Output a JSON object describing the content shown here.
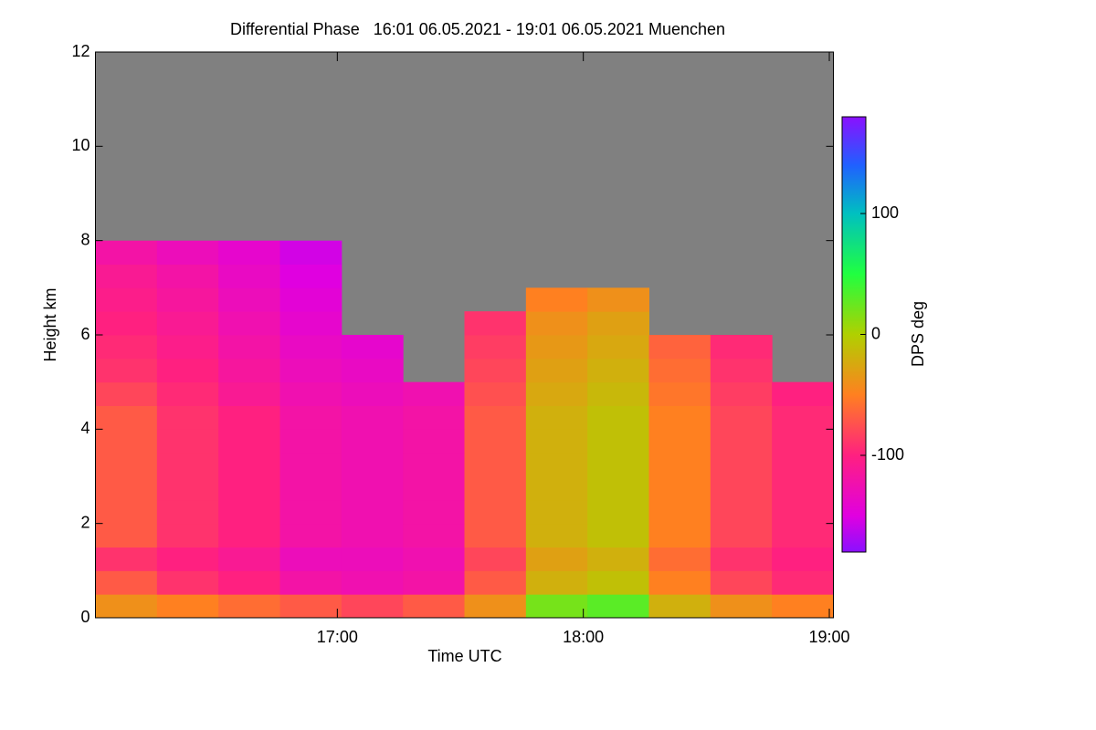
{
  "chart_data": {
    "type": "heatmap",
    "title": "Differential Phase   16:01 06.05.2021 - 19:01 06.05.2021 Muenchen",
    "xlabel": "Time UTC",
    "ylabel": "Height km",
    "colorbar_label": "DPS deg",
    "xlim": [
      16.0167,
      19.0167
    ],
    "ylim": [
      0,
      12
    ],
    "xticks": [
      {
        "value": 17,
        "label": "17:00"
      },
      {
        "value": 18,
        "label": "18:00"
      },
      {
        "value": 19,
        "label": "19:00"
      }
    ],
    "yticks": [
      0,
      2,
      4,
      6,
      8,
      10,
      12
    ],
    "x_bins": [
      16.0167,
      16.2667,
      16.5167,
      16.7667,
      17.0167,
      17.2667,
      17.5167,
      17.7667,
      18.0167,
      18.2667,
      18.5167,
      18.7667,
      19.0167
    ],
    "y_bins": [
      0,
      0.5,
      1,
      1.5,
      2,
      2.5,
      3,
      3.5,
      4,
      4.5,
      5,
      5.5,
      6,
      6.5,
      7,
      7.5,
      8,
      8.5,
      9,
      9.5,
      10,
      10.5,
      11,
      11.5,
      12
    ],
    "z": [
      [
        -40,
        -50,
        -60,
        -70,
        -80,
        -70,
        -40,
        20,
        30,
        -20,
        -40,
        -50
      ],
      [
        -70,
        -90,
        -100,
        -120,
        -125,
        -120,
        -70,
        -20,
        -10,
        -50,
        -80,
        -95
      ],
      [
        -90,
        -100,
        -110,
        -130,
        -130,
        -125,
        -80,
        -30,
        -20,
        -60,
        -90,
        -100
      ],
      [
        -70,
        -90,
        -100,
        -120,
        -125,
        -120,
        -70,
        -20,
        -10,
        -50,
        -80,
        -95
      ],
      [
        -70,
        -90,
        -100,
        -120,
        -125,
        -120,
        -70,
        -20,
        -10,
        -50,
        -80,
        -95
      ],
      [
        -70,
        -90,
        -100,
        -120,
        -125,
        -120,
        -70,
        -20,
        -10,
        -50,
        -80,
        -95
      ],
      [
        -70,
        -90,
        -100,
        -120,
        -125,
        -120,
        -70,
        -20,
        -10,
        -50,
        -80,
        -95
      ],
      [
        -70,
        -90,
        -100,
        -120,
        -125,
        -120,
        -70,
        -20,
        -10,
        -50,
        -80,
        -95
      ],
      [
        -70,
        -90,
        -100,
        -120,
        -125,
        -120,
        -70,
        -20,
        -10,
        -50,
        -80,
        -95
      ],
      [
        -80,
        -95,
        -110,
        -125,
        -130,
        -125,
        -75,
        -25,
        -15,
        -55,
        -85,
        -100
      ],
      [
        -90,
        -100,
        -115,
        -130,
        -135,
        null,
        -80,
        -30,
        -20,
        -60,
        -90,
        null
      ],
      [
        -95,
        -105,
        -120,
        -135,
        -140,
        null,
        -85,
        -35,
        -25,
        -65,
        -95,
        null
      ],
      [
        -100,
        -110,
        -125,
        -140,
        null,
        null,
        -90,
        -40,
        -30,
        null,
        null,
        null
      ],
      [
        -105,
        -115,
        -130,
        -145,
        null,
        null,
        null,
        -50,
        -40,
        null,
        null,
        null
      ],
      [
        -110,
        -120,
        -135,
        -150,
        null,
        null,
        null,
        null,
        null,
        null,
        null,
        null
      ],
      [
        -120,
        -130,
        -140,
        -155,
        null,
        null,
        null,
        null,
        null,
        null,
        null,
        null
      ],
      [
        null,
        null,
        null,
        null,
        null,
        null,
        null,
        null,
        null,
        null,
        null,
        null
      ],
      [
        null,
        null,
        null,
        null,
        null,
        null,
        null,
        null,
        null,
        null,
        null,
        null
      ],
      [
        null,
        null,
        null,
        null,
        null,
        null,
        null,
        null,
        null,
        null,
        null,
        null
      ],
      [
        null,
        null,
        null,
        null,
        null,
        null,
        null,
        null,
        null,
        null,
        null,
        null
      ],
      [
        null,
        null,
        null,
        null,
        null,
        null,
        null,
        null,
        null,
        null,
        null,
        null
      ],
      [
        null,
        null,
        null,
        null,
        null,
        null,
        null,
        null,
        null,
        null,
        null,
        null
      ],
      [
        null,
        null,
        null,
        null,
        null,
        null,
        null,
        null,
        null,
        null,
        null,
        null
      ],
      [
        null,
        null,
        null,
        null,
        null,
        null,
        null,
        null,
        null,
        null,
        null,
        null
      ]
    ],
    "zlim": [
      -180,
      180
    ],
    "zticks": [
      -100,
      0,
      100
    ],
    "colorscale": [
      [
        -180,
        "#8a10ff"
      ],
      [
        -150,
        "#e000e0"
      ],
      [
        -100,
        "#ff2080"
      ],
      [
        -50,
        "#ff8020"
      ],
      [
        0,
        "#b0d000"
      ],
      [
        50,
        "#20ff40"
      ],
      [
        100,
        "#00c0c0"
      ],
      [
        140,
        "#2060ff"
      ],
      [
        180,
        "#8a10ff"
      ]
    ],
    "background": "#808080"
  }
}
